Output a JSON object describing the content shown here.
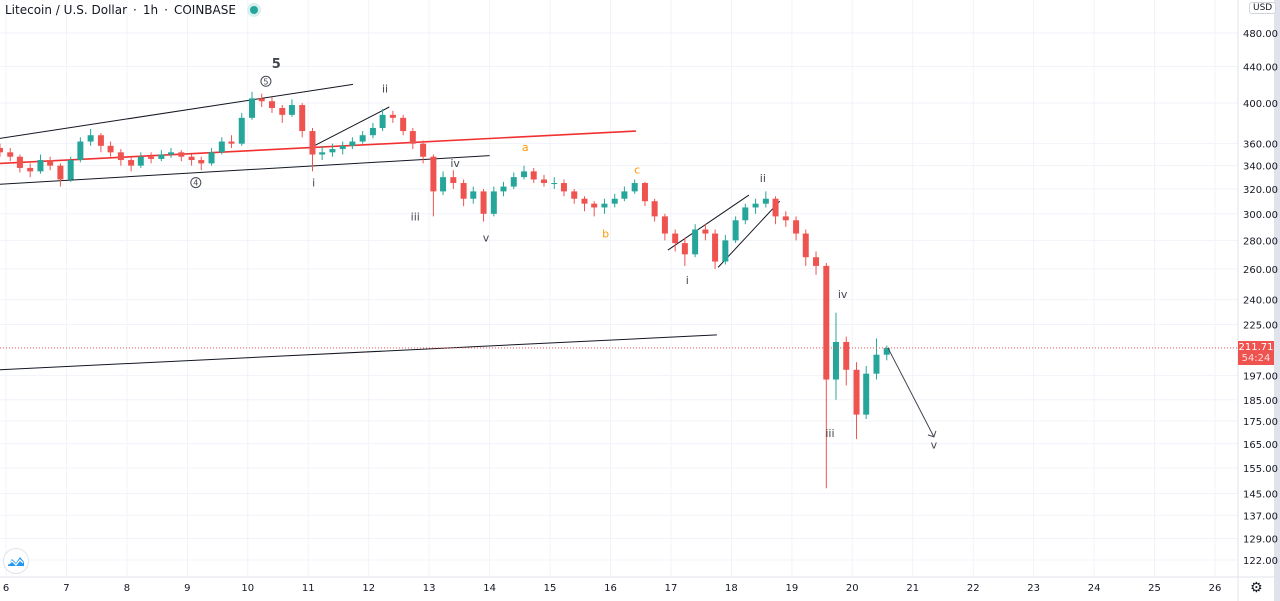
{
  "header": {
    "symbol": "Litecoin / U.S. Dollar",
    "interval": "1h",
    "exchange": "COINBASE",
    "separator": "·"
  },
  "price_axis": {
    "currency": "USD",
    "last_price": "211.71",
    "countdown": "54:24"
  },
  "colors": {
    "up": "#26a69a",
    "down": "#ef5350",
    "trendline": "#131722",
    "redline": "#f23030",
    "wave_label": "#434651",
    "wave_label_alt": "#ff9800",
    "price_line": "#ef5350"
  },
  "icons": {
    "logo": "tradingview-cloud-icon",
    "settings": "gear-icon",
    "status": "market-open-dot"
  },
  "chart_data": {
    "type": "candlestick",
    "scale": "log",
    "ylim": [
      118,
      500
    ],
    "xlim": [
      5.9,
      26.4
    ],
    "grid": true,
    "y_ticks": [
      "480.00",
      "440.00",
      "400.00",
      "360.00",
      "340.00",
      "320.00",
      "300.00",
      "280.00",
      "260.00",
      "240.00",
      "225.00",
      "197.00",
      "185.00",
      "175.00",
      "165.00",
      "155.00",
      "145.00",
      "137.00",
      "129.00",
      "122.00"
    ],
    "x_ticks": [
      "6",
      "7",
      "8",
      "9",
      "10",
      "11",
      "12",
      "13",
      "14",
      "15",
      "16",
      "17",
      "18",
      "19",
      "20",
      "21",
      "22",
      "23",
      "24",
      "25",
      "26"
    ],
    "candles": [
      [
        5.9,
        356,
        360,
        348,
        352
      ],
      [
        6.07,
        352,
        356,
        344,
        348
      ],
      [
        6.23,
        348,
        350,
        334,
        338
      ],
      [
        6.4,
        338,
        342,
        330,
        335
      ],
      [
        6.57,
        335,
        350,
        333,
        345
      ],
      [
        6.73,
        345,
        348,
        336,
        340
      ],
      [
        6.9,
        340,
        342,
        322,
        328
      ],
      [
        7.07,
        328,
        348,
        326,
        345
      ],
      [
        7.23,
        345,
        366,
        343,
        362
      ],
      [
        7.4,
        362,
        374,
        358,
        368
      ],
      [
        7.57,
        368,
        370,
        352,
        358
      ],
      [
        7.73,
        358,
        362,
        348,
        352
      ],
      [
        7.9,
        352,
        355,
        340,
        345
      ],
      [
        8.07,
        345,
        348,
        335,
        340
      ],
      [
        8.23,
        340,
        352,
        338,
        348
      ],
      [
        8.4,
        348,
        352,
        342,
        346
      ],
      [
        8.57,
        346,
        354,
        344,
        350
      ],
      [
        8.73,
        350,
        356,
        347,
        352
      ],
      [
        8.9,
        352,
        354,
        344,
        348
      ],
      [
        9.07,
        348,
        350,
        340,
        345
      ],
      [
        9.23,
        345,
        348,
        336,
        342
      ],
      [
        9.4,
        342,
        356,
        340,
        352
      ],
      [
        9.57,
        352,
        366,
        350,
        362
      ],
      [
        9.73,
        362,
        368,
        356,
        360
      ],
      [
        9.9,
        360,
        390,
        358,
        385
      ],
      [
        10.07,
        385,
        412,
        383,
        405
      ],
      [
        10.23,
        405,
        410,
        396,
        402
      ],
      [
        10.4,
        402,
        406,
        390,
        395
      ],
      [
        10.57,
        395,
        398,
        380,
        388
      ],
      [
        10.73,
        388,
        404,
        386,
        398
      ],
      [
        10.9,
        398,
        400,
        366,
        372
      ],
      [
        11.07,
        372,
        375,
        335,
        350
      ],
      [
        11.23,
        350,
        358,
        345,
        352
      ],
      [
        11.4,
        352,
        360,
        348,
        355
      ],
      [
        11.57,
        355,
        362,
        350,
        358
      ],
      [
        11.73,
        358,
        366,
        355,
        362
      ],
      [
        11.9,
        362,
        372,
        360,
        368
      ],
      [
        12.07,
        368,
        380,
        365,
        375
      ],
      [
        12.23,
        375,
        394,
        372,
        388
      ],
      [
        12.4,
        388,
        392,
        380,
        385
      ],
      [
        12.57,
        385,
        388,
        368,
        372
      ],
      [
        12.73,
        372,
        375,
        355,
        360
      ],
      [
        12.9,
        360,
        363,
        342,
        348
      ],
      [
        13.07,
        348,
        350,
        298,
        318
      ],
      [
        13.23,
        318,
        335,
        315,
        330
      ],
      [
        13.4,
        330,
        336,
        320,
        325
      ],
      [
        13.57,
        325,
        328,
        306,
        312
      ],
      [
        13.73,
        312,
        322,
        308,
        318
      ],
      [
        13.9,
        318,
        320,
        294,
        300
      ],
      [
        14.07,
        300,
        322,
        298,
        318
      ],
      [
        14.23,
        318,
        326,
        314,
        322
      ],
      [
        14.4,
        322,
        334,
        320,
        330
      ],
      [
        14.57,
        330,
        340,
        328,
        335
      ],
      [
        14.73,
        335,
        338,
        325,
        328
      ],
      [
        14.9,
        328,
        332,
        322,
        325
      ],
      [
        15.07,
        325,
        330,
        320,
        325
      ],
      [
        15.23,
        325,
        328,
        314,
        318
      ],
      [
        15.4,
        318,
        320,
        308,
        312
      ],
      [
        15.57,
        312,
        314,
        302,
        308
      ],
      [
        15.73,
        308,
        310,
        298,
        305
      ],
      [
        15.9,
        305,
        312,
        300,
        308
      ],
      [
        16.07,
        308,
        316,
        305,
        312
      ],
      [
        16.23,
        312,
        322,
        310,
        318
      ],
      [
        16.4,
        318,
        328,
        316,
        325
      ],
      [
        16.57,
        325,
        326,
        306,
        310
      ],
      [
        16.73,
        310,
        312,
        294,
        298
      ],
      [
        16.9,
        298,
        300,
        280,
        285
      ],
      [
        17.07,
        285,
        288,
        272,
        278
      ],
      [
        17.23,
        278,
        282,
        262,
        270
      ],
      [
        17.4,
        270,
        292,
        268,
        288
      ],
      [
        17.57,
        288,
        292,
        280,
        285
      ],
      [
        17.73,
        285,
        288,
        260,
        265
      ],
      [
        17.9,
        265,
        284,
        263,
        280
      ],
      [
        18.07,
        280,
        298,
        278,
        295
      ],
      [
        18.23,
        295,
        308,
        292,
        305
      ],
      [
        18.4,
        305,
        312,
        300,
        308
      ],
      [
        18.57,
        308,
        318,
        305,
        312
      ],
      [
        18.73,
        312,
        314,
        292,
        298
      ],
      [
        18.9,
        298,
        302,
        290,
        295
      ],
      [
        19.07,
        295,
        298,
        280,
        285
      ],
      [
        19.23,
        285,
        288,
        262,
        268
      ],
      [
        19.4,
        268,
        272,
        256,
        262
      ],
      [
        19.57,
        262,
        264,
        147,
        195
      ],
      [
        19.73,
        195,
        232,
        185,
        215
      ],
      [
        19.9,
        215,
        218,
        192,
        200
      ],
      [
        20.07,
        200,
        204,
        167,
        178
      ],
      [
        20.23,
        178,
        202,
        176,
        198
      ],
      [
        20.4,
        198,
        217,
        195,
        208
      ],
      [
        20.57,
        208,
        213,
        205,
        211.71
      ]
    ],
    "last_price": 211.71,
    "trendlines": [
      {
        "color": "trendline",
        "from": [
          5.9,
          365
        ],
        "to": [
          11.74,
          420
        ]
      },
      {
        "color": "trendline",
        "from": [
          5.9,
          324
        ],
        "to": [
          14.0,
          349
        ]
      },
      {
        "color": "redline",
        "from": [
          5.9,
          342
        ],
        "to": [
          16.42,
          372
        ]
      },
      {
        "color": "trendline",
        "from": [
          11.03,
          356
        ],
        "to": [
          12.34,
          396
        ]
      },
      {
        "color": "trendline",
        "from": [
          5.9,
          200
        ],
        "to": [
          17.76,
          219
        ]
      },
      {
        "color": "trendline",
        "from": [
          16.95,
          273
        ],
        "to": [
          18.29,
          315
        ]
      },
      {
        "color": "trendline",
        "from": [
          17.78,
          261
        ],
        "to": [
          18.8,
          310
        ]
      }
    ],
    "arrow": {
      "from": [
        20.59,
        211.7
      ],
      "to": [
        21.35,
        168
      ]
    },
    "annotations": [
      {
        "text": "5",
        "t": 10.47,
        "p": 438,
        "style": "big"
      },
      {
        "text": "5",
        "t": 10.3,
        "p": 419,
        "style": "circle"
      },
      {
        "text": "4",
        "t": 9.14,
        "p": 322,
        "style": "circle"
      },
      {
        "text": "i",
        "t": 11.09,
        "p": 322
      },
      {
        "text": "ii",
        "t": 12.27,
        "p": 411
      },
      {
        "text": "iii",
        "t": 12.77,
        "p": 295
      },
      {
        "text": "iv",
        "t": 13.43,
        "p": 339
      },
      {
        "text": "v",
        "t": 13.94,
        "p": 279
      },
      {
        "text": "a",
        "t": 14.59,
        "p": 353,
        "style": "orange"
      },
      {
        "text": "b",
        "t": 15.92,
        "p": 282,
        "style": "orange"
      },
      {
        "text": "c",
        "t": 16.44,
        "p": 333,
        "style": "orange"
      },
      {
        "text": "i",
        "t": 17.27,
        "p": 250
      },
      {
        "text": "ii",
        "t": 18.52,
        "p": 326
      },
      {
        "text": "iv",
        "t": 19.84,
        "p": 241
      },
      {
        "text": "iii",
        "t": 19.63,
        "p": 168
      },
      {
        "text": "v",
        "t": 21.35,
        "p": 163
      }
    ]
  }
}
